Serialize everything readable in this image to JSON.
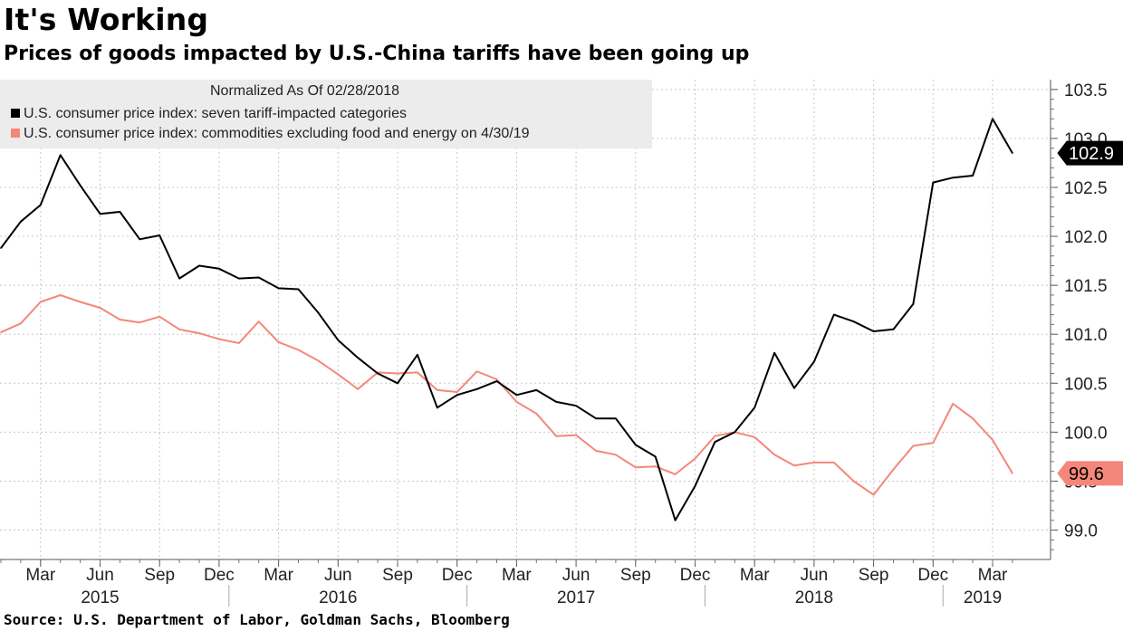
{
  "header": {
    "title": "It's Working",
    "subtitle": "Prices of goods impacted by U.S.-China tariffs have been going up"
  },
  "source": "Source: U.S. Department of Labor, Goldman Sachs, Bloomberg",
  "colors": {
    "tariff_series": "#000000",
    "core_series": "#f4877a",
    "grid": "#c8c8c8",
    "legend_bg": "#ececec"
  },
  "chart_data": {
    "type": "line",
    "title": "It's Working",
    "subtitle": "Prices of goods impacted by U.S.-China tariffs have been going up",
    "legend_note": "Normalized As Of 02/28/2018",
    "legend_position": "top-left",
    "ylim": [
      98.7,
      103.6
    ],
    "yticks": [
      99.0,
      99.5,
      100.0,
      100.5,
      101.0,
      101.5,
      102.0,
      102.5,
      103.0,
      103.5
    ],
    "ytick_labels": [
      "99.0",
      "99.5",
      "100.0",
      "100.5",
      "101.0",
      "101.5",
      "102.0",
      "102.5",
      "103.0",
      "103.5"
    ],
    "x_start": "2015-01",
    "x_end": "2019-04",
    "month_ticks": [
      "Mar",
      "Jun",
      "Sep",
      "Dec",
      "Mar",
      "Jun",
      "Sep",
      "Dec",
      "Mar",
      "Jun",
      "Sep",
      "Dec",
      "Mar",
      "Jun",
      "Sep",
      "Dec",
      "Mar"
    ],
    "year_labels": [
      "2015",
      "2016",
      "2017",
      "2018",
      "2019"
    ],
    "series": [
      {
        "name": "U.S. consumer price index: seven tariff-impacted categories",
        "last_value_label": "102.9",
        "values": [
          101.88,
          102.15,
          102.32,
          102.83,
          102.52,
          102.23,
          102.25,
          101.97,
          102.01,
          101.57,
          101.7,
          101.67,
          101.57,
          101.58,
          101.47,
          101.46,
          101.22,
          100.94,
          100.76,
          100.6,
          100.5,
          100.79,
          100.25,
          100.38,
          100.44,
          100.52,
          100.38,
          100.43,
          100.31,
          100.27,
          100.14,
          100.14,
          99.87,
          99.75,
          99.1,
          99.45,
          99.9,
          100.0,
          100.25,
          100.81,
          100.45,
          100.72,
          101.2,
          101.13,
          101.03,
          101.05,
          101.31,
          102.55,
          102.6,
          102.62,
          103.2,
          102.85
        ]
      },
      {
        "name": "U.S. consumer price index: commodities excluding food and energy on 4/30/19",
        "last_value_label": "99.6",
        "values": [
          101.02,
          101.11,
          101.33,
          101.4,
          101.33,
          101.27,
          101.15,
          101.12,
          101.18,
          101.05,
          101.01,
          100.95,
          100.91,
          101.13,
          100.92,
          100.84,
          100.73,
          100.59,
          100.44,
          100.61,
          100.6,
          100.61,
          100.43,
          100.41,
          100.62,
          100.54,
          100.31,
          100.19,
          99.96,
          99.97,
          99.81,
          99.77,
          99.64,
          99.65,
          99.57,
          99.73,
          99.96,
          100.0,
          99.95,
          99.77,
          99.66,
          99.69,
          99.69,
          99.5,
          99.36,
          99.62,
          99.86,
          99.89,
          100.29,
          100.14,
          99.92,
          99.58
        ]
      }
    ]
  }
}
